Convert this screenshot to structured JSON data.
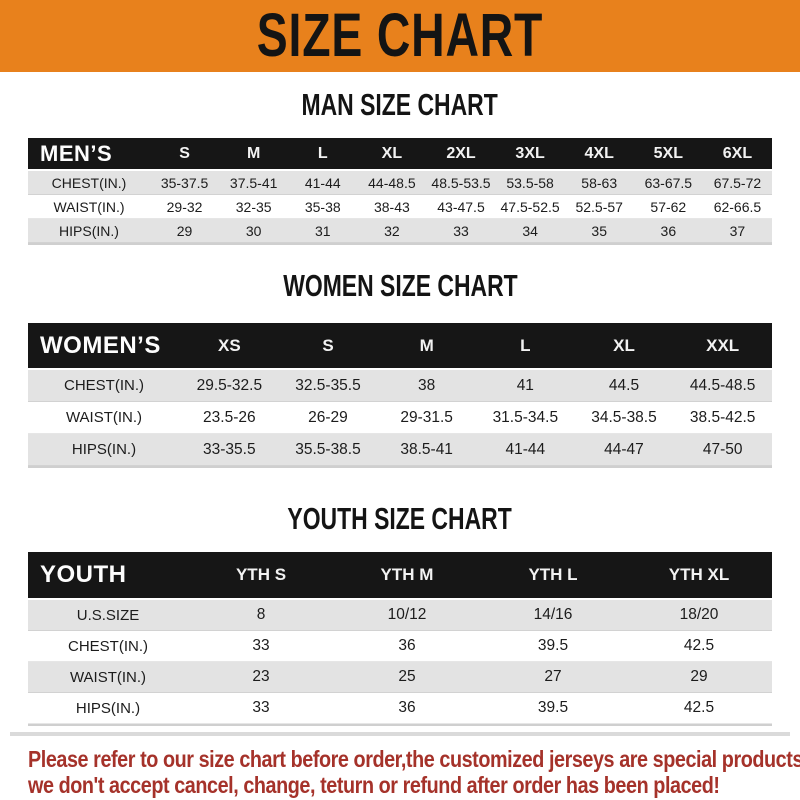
{
  "banner": {
    "title": "SIZE CHART"
  },
  "sections": [
    {
      "id": "men",
      "heading": "MAN SIZE CHART",
      "header": {
        "label": "MEN’S",
        "columns": [
          "S",
          "M",
          "L",
          "XL",
          "2XL",
          "3XL",
          "4XL",
          "5XL",
          "6XL"
        ]
      },
      "rows": [
        {
          "label": "CHEST(IN.)",
          "values": [
            "35-37.5",
            "37.5-41",
            "41-44",
            "44-48.5",
            "48.5-53.5",
            "53.5-58",
            "58-63",
            "63-67.5",
            "67.5-72"
          ]
        },
        {
          "label": "WAIST(IN.)",
          "values": [
            "29-32",
            "32-35",
            "35-38",
            "38-43",
            "43-47.5",
            "47.5-52.5",
            "52.5-57",
            "57-62",
            "62-66.5"
          ]
        },
        {
          "label": "HIPS(IN.)",
          "values": [
            "29",
            "30",
            "31",
            "32",
            "33",
            "34",
            "35",
            "36",
            "37"
          ]
        }
      ]
    },
    {
      "id": "women",
      "heading": "WOMEN SIZE CHART",
      "header": {
        "label": "WOMEN’S",
        "columns": [
          "XS",
          "S",
          "M",
          "L",
          "XL",
          "XXL"
        ]
      },
      "rows": [
        {
          "label": "CHEST(IN.)",
          "values": [
            "29.5-32.5",
            "32.5-35.5",
            "38",
            "41",
            "44.5",
            "44.5-48.5"
          ]
        },
        {
          "label": "WAIST(IN.)",
          "values": [
            "23.5-26",
            "26-29",
            "29-31.5",
            "31.5-34.5",
            "34.5-38.5",
            "38.5-42.5"
          ]
        },
        {
          "label": "HIPS(IN.)",
          "values": [
            "33-35.5",
            "35.5-38.5",
            "38.5-41",
            "41-44",
            "44-47",
            "47-50"
          ]
        }
      ]
    },
    {
      "id": "youth",
      "heading": "YOUTH SIZE CHART",
      "header": {
        "label": "YOUTH",
        "columns": [
          "YTH S",
          "YTH M",
          "YTH L",
          "YTH XL"
        ]
      },
      "rows": [
        {
          "label": "U.S.SIZE",
          "values": [
            "8",
            "10/12",
            "14/16",
            "18/20"
          ]
        },
        {
          "label": "CHEST(IN.)",
          "values": [
            "33",
            "36",
            "39.5",
            "42.5"
          ]
        },
        {
          "label": "WAIST(IN.)",
          "values": [
            "23",
            "25",
            "27",
            "29"
          ]
        },
        {
          "label": "HIPS(IN.)",
          "values": [
            "33",
            "36",
            "39.5",
            "42.5"
          ]
        }
      ]
    }
  ],
  "note": {
    "lines": [
      "Please refer to our size chart before order,the customized jerseys are special products,",
      "we don't accept cancel, change, teturn or refund after order has been placed!"
    ]
  },
  "colors": {
    "banner_orange": "#e8811c",
    "header_black": "#161616",
    "row_gray": "#e3e3e3",
    "note_red": "#a5322a"
  }
}
